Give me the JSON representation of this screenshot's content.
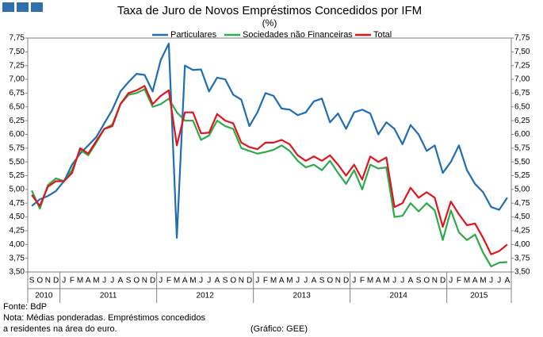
{
  "chart_data": {
    "type": "line",
    "title": "Taxa de Juro de Novos Empréstimos Concedidos por IFM",
    "subtitle": "(%)",
    "categories": [
      "S",
      "O",
      "N",
      "D",
      "J",
      "F",
      "M",
      "A",
      "M",
      "J",
      "J",
      "A",
      "S",
      "O",
      "N",
      "D",
      "J",
      "F",
      "M",
      "A",
      "M",
      "J",
      "J",
      "A",
      "S",
      "O",
      "N",
      "D",
      "J",
      "F",
      "M",
      "A",
      "M",
      "J",
      "J",
      "A",
      "S",
      "O",
      "N",
      "D",
      "J",
      "F",
      "M",
      "A",
      "M",
      "J",
      "J",
      "A",
      "S",
      "O",
      "N",
      "D",
      "J",
      "F",
      "M",
      "A",
      "M",
      "J",
      "J",
      "A"
    ],
    "years": [
      "2010",
      "2011",
      "2012",
      "2013",
      "2014",
      "2015"
    ],
    "series": [
      {
        "name": "Particulares",
        "color": "#1f6db5",
        "values": [
          4.7,
          4.82,
          4.88,
          4.97,
          5.15,
          5.45,
          5.65,
          5.8,
          5.95,
          6.2,
          6.45,
          6.78,
          6.95,
          7.1,
          7.08,
          6.78,
          7.35,
          7.65,
          4.12,
          7.25,
          7.17,
          7.18,
          6.78,
          7.03,
          7.0,
          6.72,
          6.63,
          6.15,
          6.4,
          6.75,
          6.7,
          6.47,
          6.45,
          6.35,
          6.4,
          6.6,
          6.65,
          6.22,
          6.38,
          6.1,
          6.4,
          6.45,
          6.38,
          6.0,
          6.22,
          6.1,
          5.82,
          6.17,
          6.0,
          5.7,
          5.8,
          5.3,
          5.5,
          5.8,
          5.35,
          5.1,
          4.95,
          4.68,
          4.63,
          4.85
        ]
      },
      {
        "name": "Sociedades não Financeiras",
        "color": "#2eaa4a",
        "values": [
          4.98,
          4.65,
          5.08,
          5.2,
          5.15,
          5.35,
          5.72,
          5.62,
          5.85,
          6.1,
          6.18,
          6.55,
          6.72,
          6.75,
          6.82,
          6.5,
          6.55,
          6.65,
          6.4,
          6.25,
          6.25,
          5.9,
          5.98,
          6.25,
          6.15,
          6.1,
          5.75,
          5.7,
          5.65,
          5.68,
          5.72,
          5.8,
          5.7,
          5.52,
          5.4,
          5.45,
          5.35,
          5.52,
          5.3,
          5.1,
          5.35,
          5.0,
          5.45,
          5.38,
          5.4,
          4.5,
          4.52,
          4.75,
          4.6,
          4.75,
          4.62,
          4.08,
          4.62,
          4.22,
          4.08,
          4.18,
          3.85,
          3.6,
          3.67,
          3.68
        ]
      },
      {
        "name": "Total",
        "color": "#e0141e",
        "values": [
          4.9,
          4.7,
          5.05,
          5.15,
          5.15,
          5.3,
          5.75,
          5.65,
          5.88,
          6.1,
          6.15,
          6.55,
          6.75,
          6.8,
          6.88,
          6.55,
          6.7,
          6.8,
          5.8,
          6.4,
          6.4,
          6.02,
          6.03,
          6.37,
          6.25,
          6.2,
          5.85,
          5.77,
          5.73,
          5.85,
          5.85,
          5.9,
          5.82,
          5.62,
          5.52,
          5.6,
          5.52,
          5.62,
          5.45,
          5.25,
          5.45,
          5.18,
          5.6,
          5.5,
          5.58,
          4.68,
          4.75,
          5.03,
          4.85,
          4.95,
          4.85,
          4.32,
          4.78,
          4.55,
          4.35,
          4.38,
          4.12,
          3.82,
          3.88,
          4.0
        ]
      }
    ],
    "ylim": [
      3.5,
      7.75
    ],
    "yticks": [
      {
        "value": 3.5,
        "label": "3,50"
      },
      {
        "value": 3.75,
        "label": "3,75"
      },
      {
        "value": 4,
        "label": "4,00"
      },
      {
        "value": 4.25,
        "label": "4,25"
      },
      {
        "value": 4.5,
        "label": "4,50"
      },
      {
        "value": 4.75,
        "label": "4,75"
      },
      {
        "value": 5,
        "label": "5,00"
      },
      {
        "value": 5.25,
        "label": "5,25"
      },
      {
        "value": 5.5,
        "label": "5,50"
      },
      {
        "value": 5.75,
        "label": "5,75"
      },
      {
        "value": 6,
        "label": "6,00"
      },
      {
        "value": 6.25,
        "label": "6,25"
      },
      {
        "value": 6.5,
        "label": "6,50"
      },
      {
        "value": 6.75,
        "label": "6,75"
      },
      {
        "value": 7,
        "label": "7,00"
      },
      {
        "value": 7.25,
        "label": "7,25"
      },
      {
        "value": 7.5,
        "label": "7,50"
      },
      {
        "value": 7.75,
        "label": "7,75"
      }
    ],
    "grid": false,
    "legend": "top",
    "source": "Fonte: BdP",
    "notes": [
      "Nota: Médias ponderadas. Empréstimos concedidos",
      "a residentes na área do euro."
    ],
    "credit": "(Gráfico: GEE)"
  }
}
